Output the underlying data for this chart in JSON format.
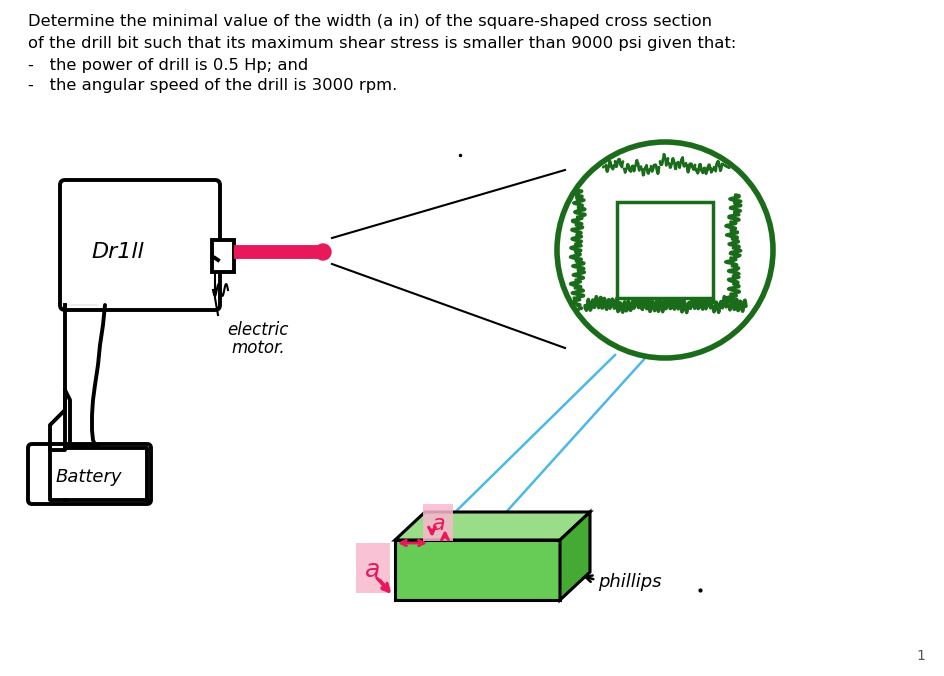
{
  "title_lines": [
    "Determine the minimal value of the width (a in) of the square-shaped cross section",
    "of the drill bit such that its maximum shear stress is smaller than 9000 psi given that:",
    "-   the power of drill is 0.5 Hp; and",
    "-   the angular speed of the drill is 3000 rpm."
  ],
  "page_number": "1",
  "bg_color": "#ffffff",
  "text_color": "#000000",
  "drill_color": "#000000",
  "bit_color": "#e8185a",
  "circle_edge": "#1a6b1a",
  "circle_hatch": "#1a6b1a",
  "label_color": "#e8185a",
  "pink_bg": "#f9b8ce",
  "blue_line": "#4db8e8",
  "green_fill": "#66cc55",
  "green_top": "#99dd88",
  "green_right": "#44aa33",
  "phillips_color": "#000000"
}
